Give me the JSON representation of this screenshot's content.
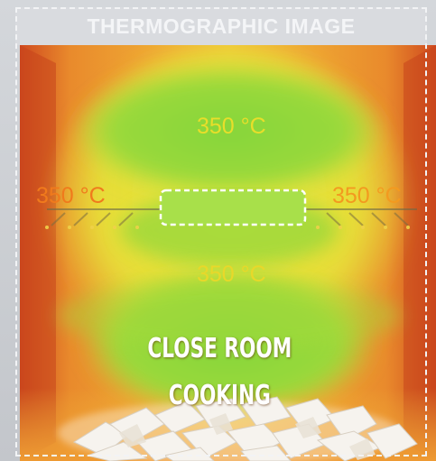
{
  "header": {
    "title": "THERMOGRAPHIC IMAGE"
  },
  "temperatures": {
    "top": "350 °C",
    "left": "350 °C",
    "right": "350 °C",
    "bottom": "350 °C"
  },
  "caption": {
    "line1": "CLOSE ROOM",
    "line2": "COOKING"
  },
  "colors": {
    "hot_outer": "#d9502a",
    "warm": "#f2a22a",
    "yellow": "#e7e43a",
    "green": "#8fd63a"
  }
}
